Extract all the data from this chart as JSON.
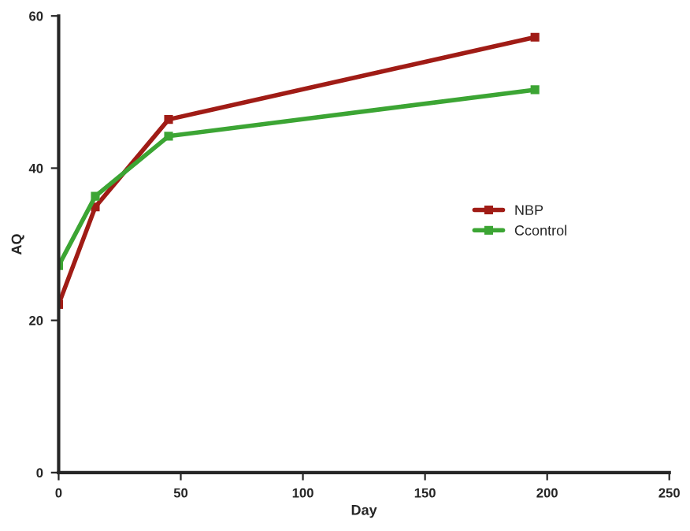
{
  "chart_data": {
    "type": "line",
    "xlabel": "Day",
    "ylabel": "AQ",
    "xlim": [
      0,
      250
    ],
    "xticks": [
      0,
      50,
      100,
      150,
      200,
      250
    ],
    "ylim": [
      0,
      60
    ],
    "yticks": [
      0,
      20,
      40,
      60
    ],
    "marker": "square",
    "legend": "right",
    "grid": false,
    "series": [
      {
        "name": "NBP",
        "color": "#a01c16",
        "x": [
          0,
          15,
          45,
          195
        ],
        "values": [
          22.1,
          34.9,
          46.4,
          57.2
        ]
      },
      {
        "name": "Ccontrol",
        "color": "#3ca534",
        "x": [
          0,
          15,
          45,
          195
        ],
        "values": [
          27.2,
          36.3,
          44.2,
          50.3
        ]
      }
    ]
  }
}
